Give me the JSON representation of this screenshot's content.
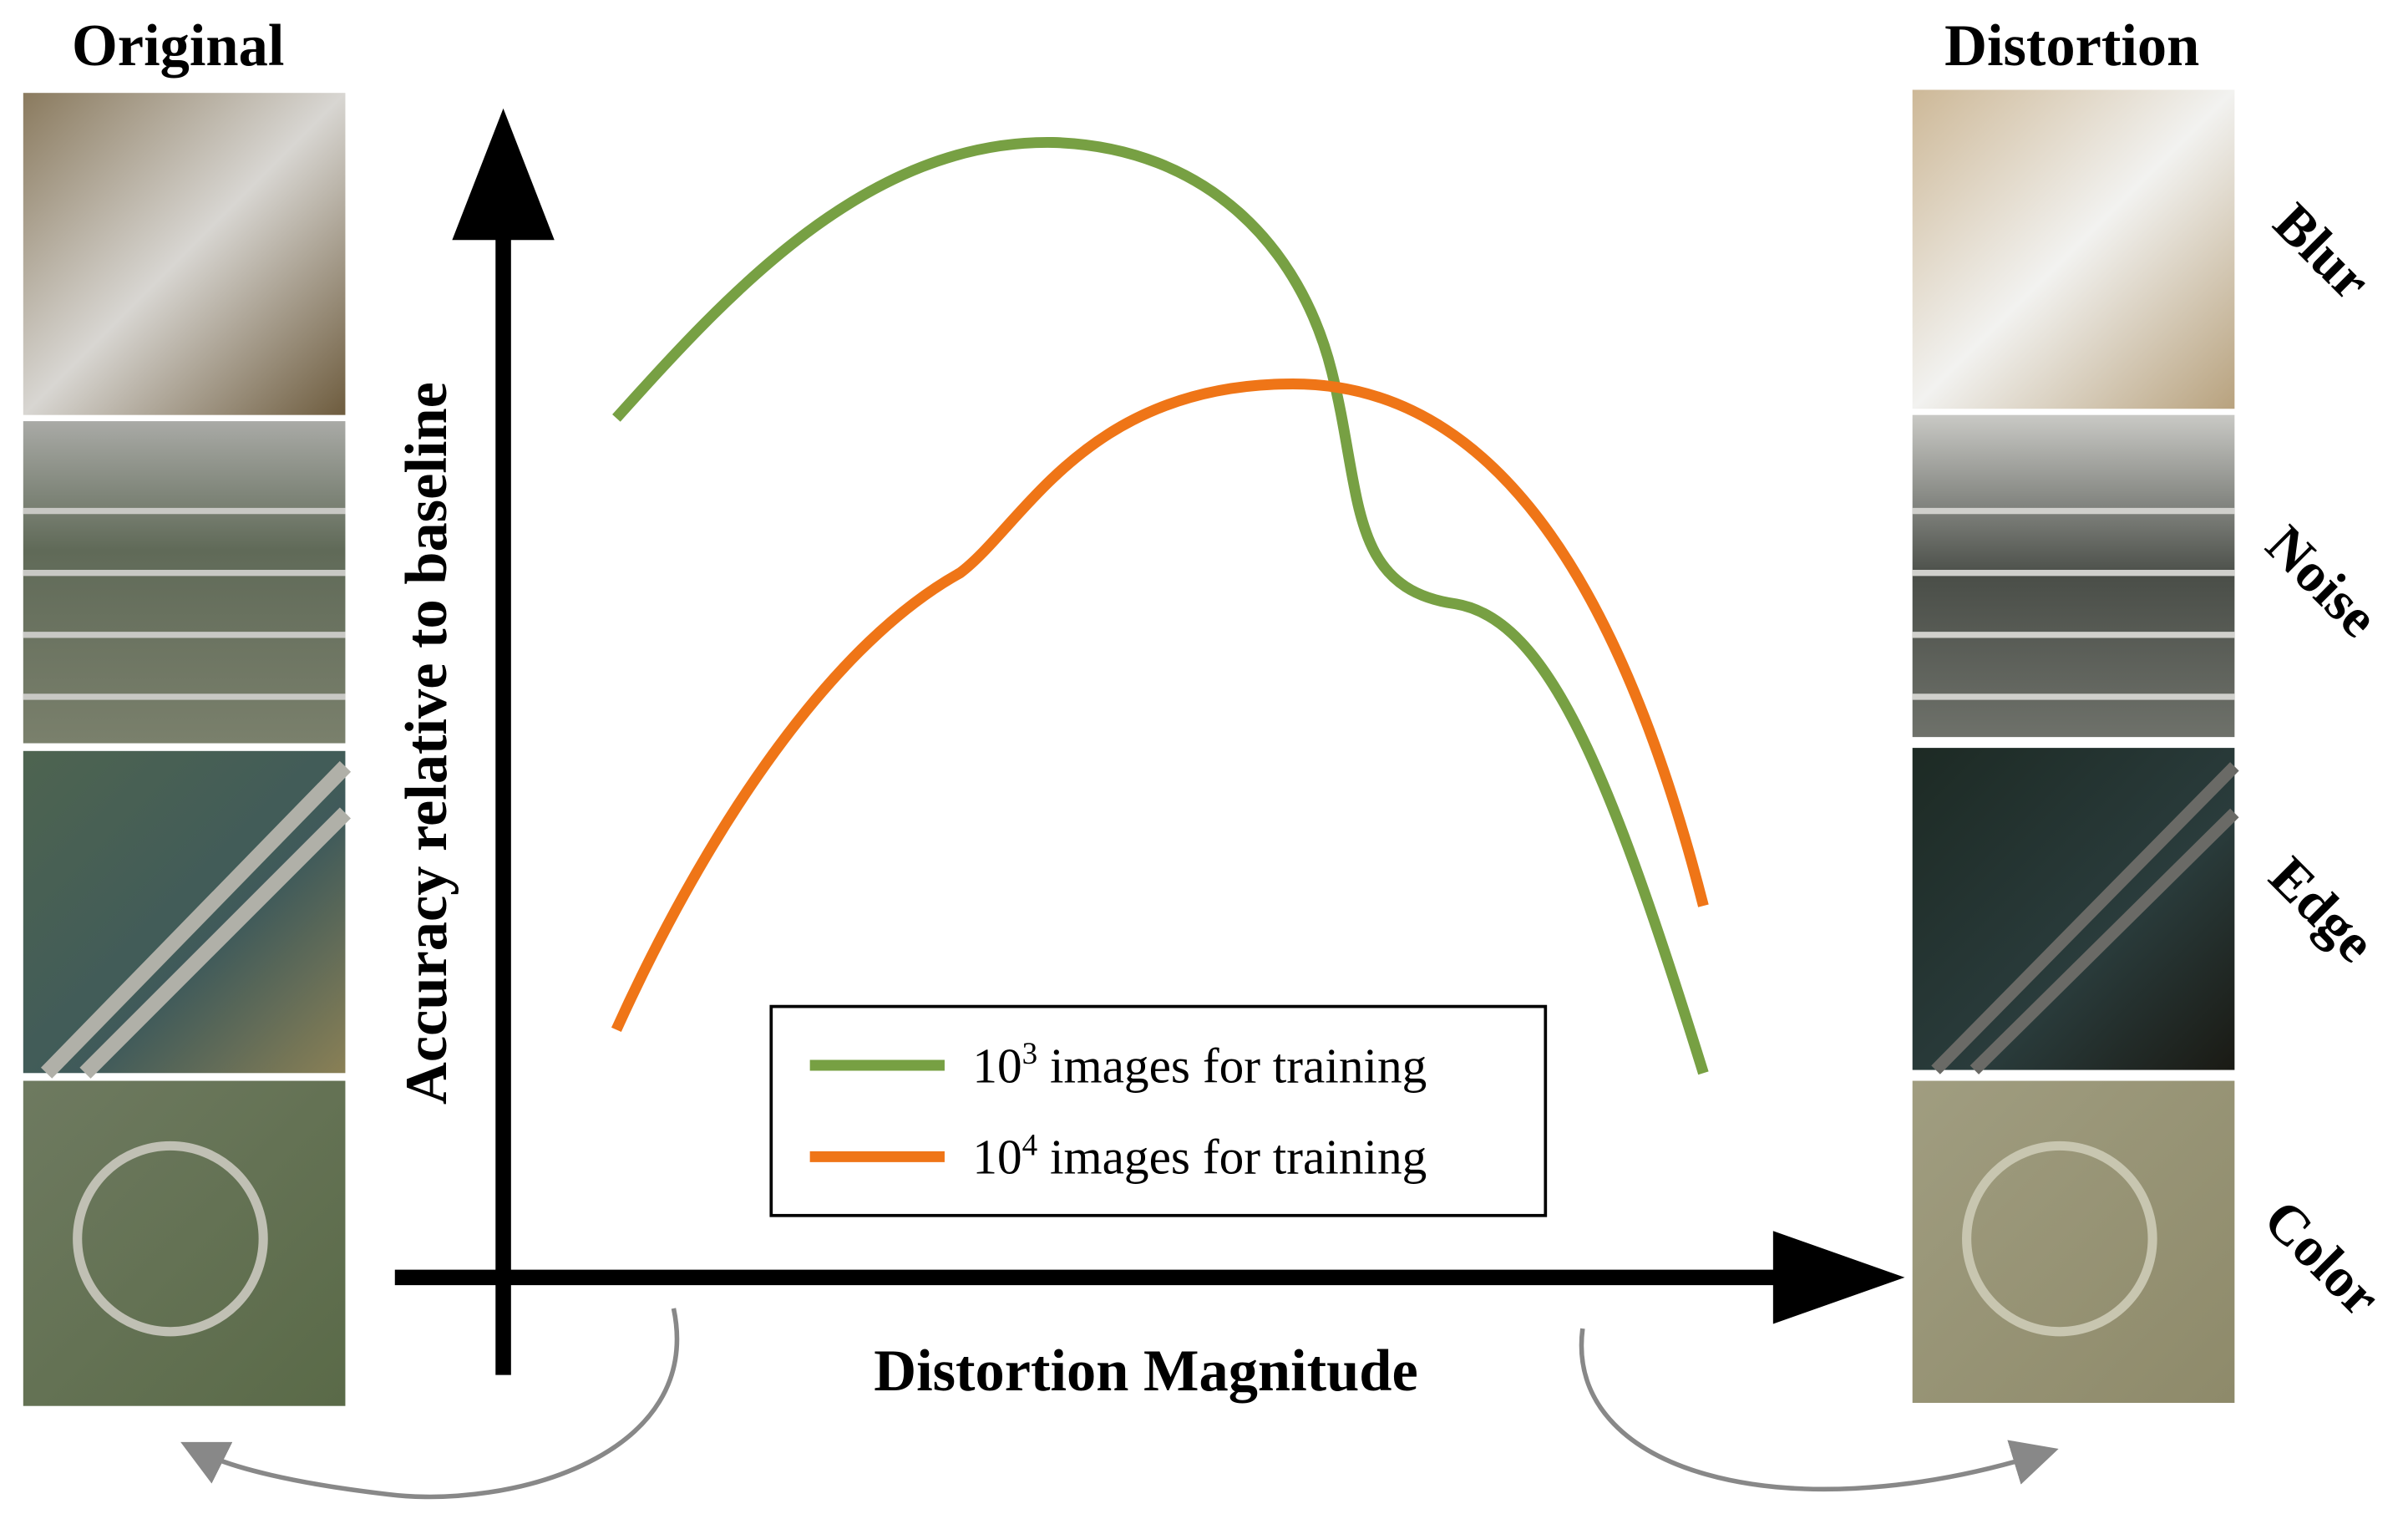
{
  "header": {
    "original": "Original",
    "distortion": "Distortion"
  },
  "distortions": [
    "Blur",
    "Noise",
    "Edge",
    "Color"
  ],
  "axes": {
    "y_label": "Accuracy relative to baseline",
    "x_label": "Distortion Magnitude"
  },
  "legend": [
    {
      "base": "10",
      "exponent": "3",
      "text": "images for training",
      "color": "#77a043"
    },
    {
      "base": "10",
      "exponent": "4",
      "text": "images for training",
      "color": "#ef7517"
    }
  ]
}
